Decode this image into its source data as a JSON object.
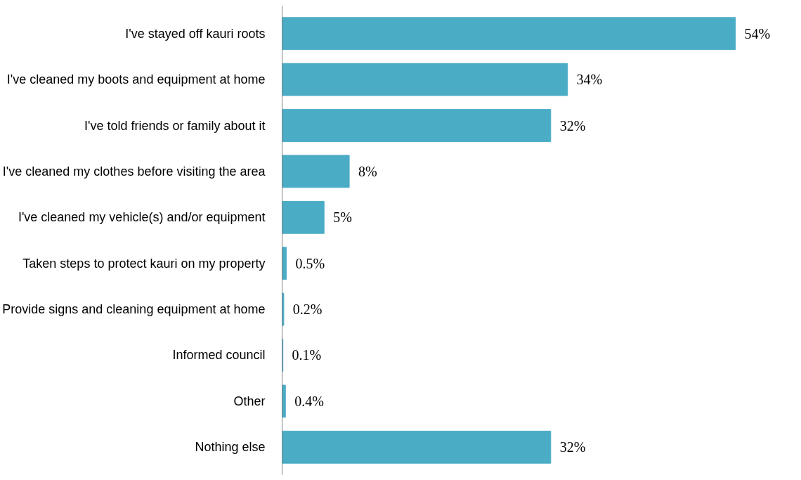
{
  "chart_data": {
    "type": "bar",
    "orientation": "horizontal",
    "categories": [
      "I've stayed off kauri roots",
      "I've cleaned my boots and equipment at home",
      "I've told friends or family about it",
      "I've cleaned my clothes before visiting the area",
      "I've cleaned my vehicle(s) and/or equipment",
      "Taken steps to protect kauri on my property",
      "Provide signs and cleaning equipment at home",
      "Informed council",
      "Other",
      "Nothing else"
    ],
    "values": [
      54,
      34,
      32,
      8,
      5,
      0.5,
      0.2,
      0.1,
      0.4,
      32
    ],
    "value_labels": [
      "54%",
      "34%",
      "32%",
      "8%",
      "5%",
      "0.5%",
      "0.2%",
      "0.1%",
      "0.4%",
      "32%"
    ],
    "color": "#4bacc6",
    "grid": false
  }
}
